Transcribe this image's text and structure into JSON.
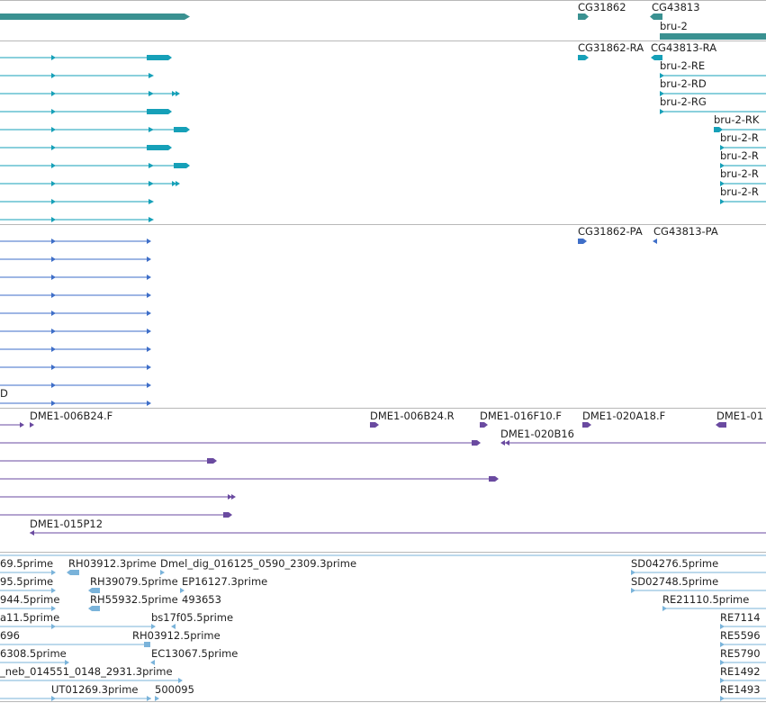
{
  "colors": {
    "gene": "#3a9191",
    "mrna": "#16a0b8",
    "protein": "#3e6ec8",
    "clone": "#6a4aa0",
    "est": "#7ab3da",
    "divider": "#b8b8b8"
  },
  "tracks": {
    "genes": {
      "labels": [
        "CG31862",
        "CG43813",
        "bru-2"
      ]
    },
    "transcripts": {
      "labels": [
        "CG31862-RA",
        "CG43813-RA",
        "bru-2-RE",
        "bru-2-RD",
        "bru-2-RG",
        "bru-2-RK",
        "bru-2-R",
        "bru-2-R",
        "bru-2-R",
        "bru-2-R"
      ]
    },
    "proteins": {
      "labels": [
        "CG31862-PA",
        "CG43813-PA",
        "D"
      ]
    },
    "clones": {
      "labels": [
        "DME1-006B24.F",
        "DME1-006B24.R",
        "DME1-016F10.F",
        "DME1-020A18.F",
        "DME1-01",
        "DME1-020B16",
        "DME1-015P12"
      ]
    },
    "ests": {
      "labels": [
        "69.5prime",
        "RH03912.3prime",
        "Dmel_dig_016125_0590_2309.3prime",
        "SD04276.5prime",
        "95.5prime",
        "RH39079.5prime",
        "EP16127.3prime",
        "SD02748.5prime",
        "944.5prime",
        "RH55932.5prime",
        "493653",
        "RE21110.5prime",
        "a11.5prime",
        "bs17f05.5prime",
        "RE7114",
        "696",
        "RH03912.5prime",
        "RE5596",
        "6308.5prime",
        "EC13067.5prime",
        "RE5790",
        "_neb_014551_0148_2931.3prime",
        "RE1492",
        "UT01269.3prime",
        "500095",
        "RE1493"
      ]
    }
  }
}
